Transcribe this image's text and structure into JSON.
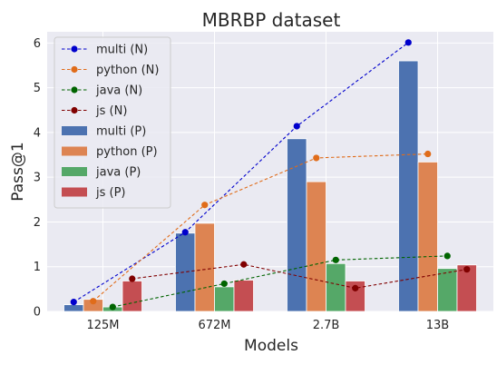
{
  "chart_data": {
    "type": "bar",
    "title": "MBRBP dataset",
    "xlabel": "Models",
    "ylabel": "Pass@1",
    "categories": [
      "125M",
      "672M",
      "2.7B",
      "13B"
    ],
    "ylim": [
      0,
      6.25
    ],
    "yticks": [
      0,
      1,
      2,
      3,
      4,
      5,
      6
    ],
    "grid": true,
    "legend_position": "top-left",
    "bar_series": [
      {
        "name": "multi (P)",
        "color": "#4c72b0",
        "values": [
          0.15,
          1.75,
          3.86,
          5.6
        ]
      },
      {
        "name": "python (P)",
        "color": "#dd8452",
        "values": [
          0.27,
          1.97,
          2.9,
          3.34
        ]
      },
      {
        "name": "java (P)",
        "color": "#55a868",
        "values": [
          0.1,
          0.55,
          1.07,
          0.96
        ]
      },
      {
        "name": "js (P)",
        "color": "#c44e52",
        "values": [
          0.68,
          0.7,
          0.68,
          1.04
        ]
      }
    ],
    "line_series": [
      {
        "name": "multi (N)",
        "color": "#0000cc",
        "values": [
          0.21,
          1.77,
          4.14,
          6.01
        ]
      },
      {
        "name": "python (N)",
        "color": "#e06c1a",
        "values": [
          0.23,
          2.38,
          3.43,
          3.52
        ]
      },
      {
        "name": "java (N)",
        "color": "#006400",
        "values": [
          0.1,
          0.62,
          1.15,
          1.24
        ]
      },
      {
        "name": "js (N)",
        "color": "#800000",
        "values": [
          0.73,
          1.05,
          0.52,
          0.94
        ]
      }
    ]
  }
}
